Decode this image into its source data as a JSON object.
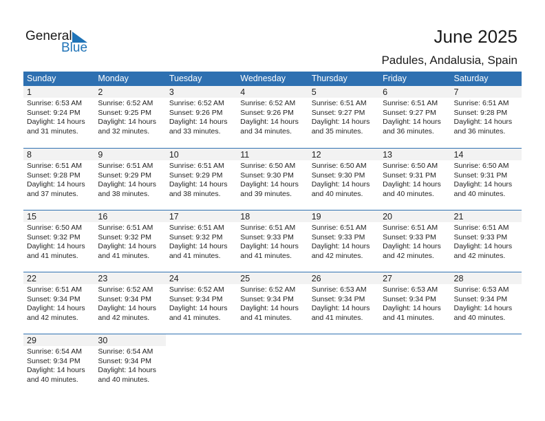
{
  "logo": {
    "text1": "General",
    "text2": "Blue"
  },
  "title": "June 2025",
  "location": "Padules, Andalusia, Spain",
  "colors": {
    "header": "#2e70b1",
    "brand": "#1f73b7",
    "daystrip": "#f2f2f2"
  },
  "weekdays": [
    "Sunday",
    "Monday",
    "Tuesday",
    "Wednesday",
    "Thursday",
    "Friday",
    "Saturday"
  ],
  "weeks": [
    [
      {
        "day": "1",
        "sunrise": "Sunrise: 6:53 AM",
        "sunset": "Sunset: 9:24 PM",
        "daylight": "Daylight: 14 hours",
        "minutes": "and 31 minutes."
      },
      {
        "day": "2",
        "sunrise": "Sunrise: 6:52 AM",
        "sunset": "Sunset: 9:25 PM",
        "daylight": "Daylight: 14 hours",
        "minutes": "and 32 minutes."
      },
      {
        "day": "3",
        "sunrise": "Sunrise: 6:52 AM",
        "sunset": "Sunset: 9:26 PM",
        "daylight": "Daylight: 14 hours",
        "minutes": "and 33 minutes."
      },
      {
        "day": "4",
        "sunrise": "Sunrise: 6:52 AM",
        "sunset": "Sunset: 9:26 PM",
        "daylight": "Daylight: 14 hours",
        "minutes": "and 34 minutes."
      },
      {
        "day": "5",
        "sunrise": "Sunrise: 6:51 AM",
        "sunset": "Sunset: 9:27 PM",
        "daylight": "Daylight: 14 hours",
        "minutes": "and 35 minutes."
      },
      {
        "day": "6",
        "sunrise": "Sunrise: 6:51 AM",
        "sunset": "Sunset: 9:27 PM",
        "daylight": "Daylight: 14 hours",
        "minutes": "and 36 minutes."
      },
      {
        "day": "7",
        "sunrise": "Sunrise: 6:51 AM",
        "sunset": "Sunset: 9:28 PM",
        "daylight": "Daylight: 14 hours",
        "minutes": "and 36 minutes."
      }
    ],
    [
      {
        "day": "8",
        "sunrise": "Sunrise: 6:51 AM",
        "sunset": "Sunset: 9:28 PM",
        "daylight": "Daylight: 14 hours",
        "minutes": "and 37 minutes."
      },
      {
        "day": "9",
        "sunrise": "Sunrise: 6:51 AM",
        "sunset": "Sunset: 9:29 PM",
        "daylight": "Daylight: 14 hours",
        "minutes": "and 38 minutes."
      },
      {
        "day": "10",
        "sunrise": "Sunrise: 6:51 AM",
        "sunset": "Sunset: 9:29 PM",
        "daylight": "Daylight: 14 hours",
        "minutes": "and 38 minutes."
      },
      {
        "day": "11",
        "sunrise": "Sunrise: 6:50 AM",
        "sunset": "Sunset: 9:30 PM",
        "daylight": "Daylight: 14 hours",
        "minutes": "and 39 minutes."
      },
      {
        "day": "12",
        "sunrise": "Sunrise: 6:50 AM",
        "sunset": "Sunset: 9:30 PM",
        "daylight": "Daylight: 14 hours",
        "minutes": "and 40 minutes."
      },
      {
        "day": "13",
        "sunrise": "Sunrise: 6:50 AM",
        "sunset": "Sunset: 9:31 PM",
        "daylight": "Daylight: 14 hours",
        "minutes": "and 40 minutes."
      },
      {
        "day": "14",
        "sunrise": "Sunrise: 6:50 AM",
        "sunset": "Sunset: 9:31 PM",
        "daylight": "Daylight: 14 hours",
        "minutes": "and 40 minutes."
      }
    ],
    [
      {
        "day": "15",
        "sunrise": "Sunrise: 6:50 AM",
        "sunset": "Sunset: 9:32 PM",
        "daylight": "Daylight: 14 hours",
        "minutes": "and 41 minutes."
      },
      {
        "day": "16",
        "sunrise": "Sunrise: 6:51 AM",
        "sunset": "Sunset: 9:32 PM",
        "daylight": "Daylight: 14 hours",
        "minutes": "and 41 minutes."
      },
      {
        "day": "17",
        "sunrise": "Sunrise: 6:51 AM",
        "sunset": "Sunset: 9:32 PM",
        "daylight": "Daylight: 14 hours",
        "minutes": "and 41 minutes."
      },
      {
        "day": "18",
        "sunrise": "Sunrise: 6:51 AM",
        "sunset": "Sunset: 9:33 PM",
        "daylight": "Daylight: 14 hours",
        "minutes": "and 41 minutes."
      },
      {
        "day": "19",
        "sunrise": "Sunrise: 6:51 AM",
        "sunset": "Sunset: 9:33 PM",
        "daylight": "Daylight: 14 hours",
        "minutes": "and 42 minutes."
      },
      {
        "day": "20",
        "sunrise": "Sunrise: 6:51 AM",
        "sunset": "Sunset: 9:33 PM",
        "daylight": "Daylight: 14 hours",
        "minutes": "and 42 minutes."
      },
      {
        "day": "21",
        "sunrise": "Sunrise: 6:51 AM",
        "sunset": "Sunset: 9:33 PM",
        "daylight": "Daylight: 14 hours",
        "minutes": "and 42 minutes."
      }
    ],
    [
      {
        "day": "22",
        "sunrise": "Sunrise: 6:51 AM",
        "sunset": "Sunset: 9:34 PM",
        "daylight": "Daylight: 14 hours",
        "minutes": "and 42 minutes."
      },
      {
        "day": "23",
        "sunrise": "Sunrise: 6:52 AM",
        "sunset": "Sunset: 9:34 PM",
        "daylight": "Daylight: 14 hours",
        "minutes": "and 42 minutes."
      },
      {
        "day": "24",
        "sunrise": "Sunrise: 6:52 AM",
        "sunset": "Sunset: 9:34 PM",
        "daylight": "Daylight: 14 hours",
        "minutes": "and 41 minutes."
      },
      {
        "day": "25",
        "sunrise": "Sunrise: 6:52 AM",
        "sunset": "Sunset: 9:34 PM",
        "daylight": "Daylight: 14 hours",
        "minutes": "and 41 minutes."
      },
      {
        "day": "26",
        "sunrise": "Sunrise: 6:53 AM",
        "sunset": "Sunset: 9:34 PM",
        "daylight": "Daylight: 14 hours",
        "minutes": "and 41 minutes."
      },
      {
        "day": "27",
        "sunrise": "Sunrise: 6:53 AM",
        "sunset": "Sunset: 9:34 PM",
        "daylight": "Daylight: 14 hours",
        "minutes": "and 41 minutes."
      },
      {
        "day": "28",
        "sunrise": "Sunrise: 6:53 AM",
        "sunset": "Sunset: 9:34 PM",
        "daylight": "Daylight: 14 hours",
        "minutes": "and 40 minutes."
      }
    ],
    [
      {
        "day": "29",
        "sunrise": "Sunrise: 6:54 AM",
        "sunset": "Sunset: 9:34 PM",
        "daylight": "Daylight: 14 hours",
        "minutes": "and 40 minutes."
      },
      {
        "day": "30",
        "sunrise": "Sunrise: 6:54 AM",
        "sunset": "Sunset: 9:34 PM",
        "daylight": "Daylight: 14 hours",
        "minutes": "and 40 minutes."
      },
      null,
      null,
      null,
      null,
      null
    ]
  ]
}
